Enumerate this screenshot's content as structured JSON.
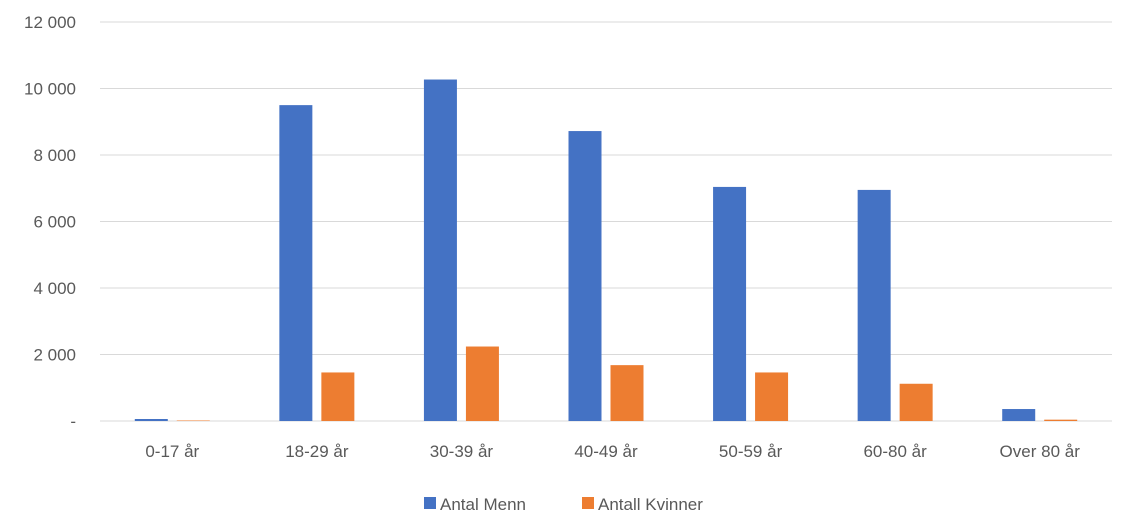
{
  "chart_data": {
    "type": "bar",
    "categories": [
      "0-17 år",
      "18-29 år",
      "30-39 år",
      "40-49 år",
      "50-59 år",
      "60-80 år",
      "Over 80 år"
    ],
    "series": [
      {
        "name": "Antal Menn",
        "color": "#4472C4",
        "values": [
          60,
          9500,
          10270,
          8720,
          7040,
          6950,
          360
        ]
      },
      {
        "name": "Antall Kvinner",
        "color": "#ED7D31",
        "values": [
          15,
          1460,
          2240,
          1680,
          1460,
          1120,
          40
        ]
      }
    ],
    "ylim": [
      0,
      12000
    ],
    "yticks": [
      0,
      2000,
      4000,
      6000,
      8000,
      10000,
      12000
    ],
    "ytick_labels": [
      "-",
      "2 000",
      "4 000",
      "6 000",
      "8 000",
      "10 000",
      "12 000"
    ],
    "grid": true,
    "legend_position": "bottom",
    "title": "",
    "xlabel": "",
    "ylabel": ""
  }
}
